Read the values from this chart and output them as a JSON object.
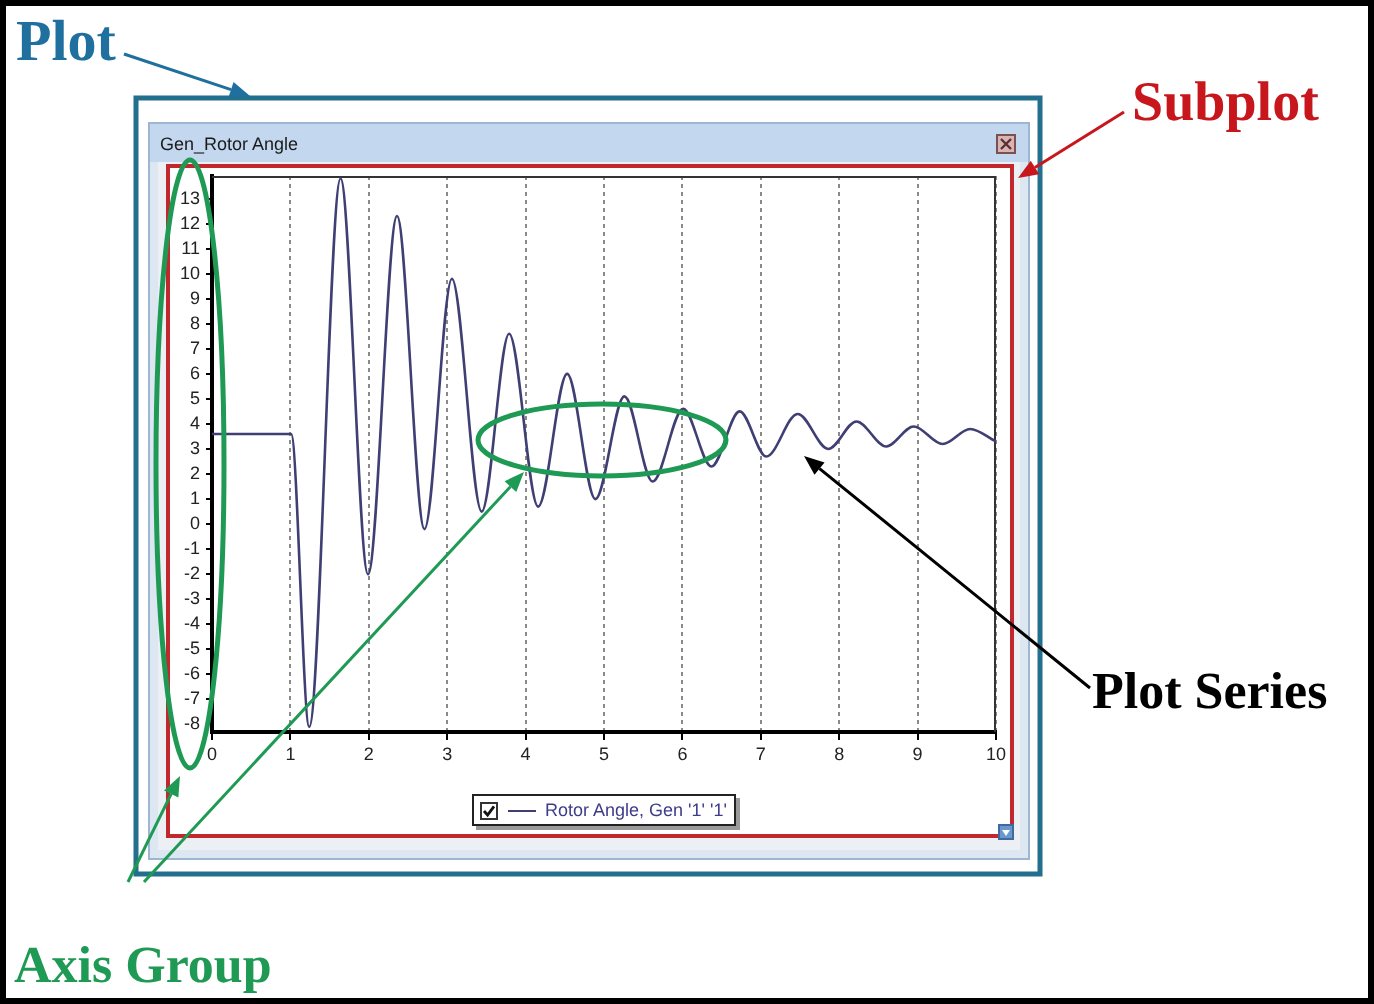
{
  "chart_data": {
    "type": "line",
    "title": "Gen_Rotor Angle",
    "x": [
      0,
      1.01,
      1.24,
      1.64,
      1.99,
      2.36,
      2.71,
      3.06,
      3.44,
      3.79,
      4.16,
      4.53,
      4.89,
      5.26,
      5.62,
      6.01,
      6.37,
      6.73,
      7.07,
      7.47,
      7.86,
      8.22,
      8.6,
      8.95,
      9.32,
      9.67,
      10
    ],
    "series": [
      {
        "name": "Rotor Angle, Gen '1' '1'",
        "color": "#3f3f74",
        "values": [
          3.6,
          3.6,
          -8.1,
          13.8,
          -2.0,
          12.3,
          -0.2,
          9.8,
          0.5,
          7.6,
          0.7,
          6.0,
          1.0,
          5.1,
          1.7,
          4.6,
          2.3,
          4.5,
          2.7,
          4.4,
          3.0,
          4.1,
          3.1,
          3.9,
          3.2,
          3.8,
          3.3
        ]
      }
    ],
    "xlim": [
      0,
      10
    ],
    "ylim": [
      -8.3,
      13.9
    ],
    "xticks": [
      0,
      1,
      2,
      3,
      4,
      5,
      6,
      7,
      8,
      9,
      10
    ],
    "yticks": [
      -8,
      -7,
      -6,
      -5,
      -4,
      -3,
      -2,
      -1,
      0,
      1,
      2,
      3,
      4,
      5,
      6,
      7,
      8,
      9,
      10,
      11,
      12,
      13
    ],
    "grid": "x",
    "legend": "bottom",
    "annotations": [
      "Plot",
      "Subplot",
      "Plot Series",
      "Axis Group"
    ]
  }
}
